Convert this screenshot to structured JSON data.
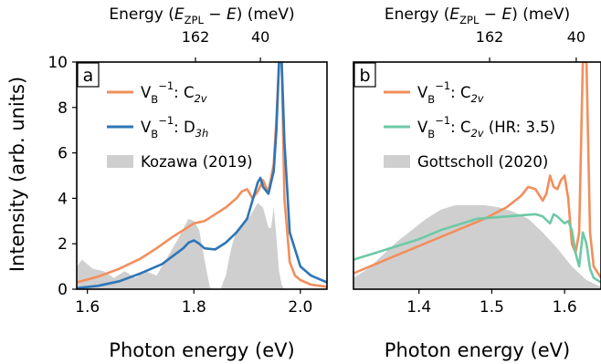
{
  "figure": {
    "y_axis_label": "Intensity (arb. units)"
  },
  "chart_data": [
    {
      "type": "line",
      "panel": "a",
      "title": "",
      "xlabel": "Photon energy (eV)",
      "ylabel": "Intensity (arb. units)",
      "top_axis_label": "Energy (E_ZPL − E) (meV)",
      "top_ticks": [
        "162",
        "40"
      ],
      "top_ticks_x": [
        1.803,
        1.925
      ],
      "xlim": [
        1.58,
        2.05
      ],
      "ylim": [
        0,
        10
      ],
      "xticks": [
        "1.6",
        "1.8",
        "2.0"
      ],
      "xtick_values": [
        1.6,
        1.8,
        2.0
      ],
      "yticks": [
        "0",
        "2",
        "4",
        "6",
        "8",
        "10"
      ],
      "ytick_values": [
        0,
        2,
        4,
        6,
        8,
        10
      ],
      "legend_position": "upper-left",
      "series": [
        {
          "name": "V_B^−1: C_2v",
          "label_main": "V",
          "label_sub1": "B",
          "label_sup": "−1",
          "label_tail": ": C",
          "label_sub2": "2v",
          "kind": "line",
          "color": "#f28e5c",
          "x": [
            1.58,
            1.62,
            1.66,
            1.7,
            1.73,
            1.76,
            1.78,
            1.8,
            1.82,
            1.84,
            1.86,
            1.88,
            1.89,
            1.9,
            1.91,
            1.92,
            1.93,
            1.935,
            1.94,
            1.945,
            1.95,
            1.955,
            1.96,
            1.965,
            1.97,
            1.98,
            1.99,
            2.0,
            2.02,
            2.05
          ],
          "y": [
            0.3,
            0.55,
            0.9,
            1.35,
            1.8,
            2.3,
            2.6,
            2.9,
            3.0,
            3.3,
            3.6,
            4.0,
            4.3,
            4.4,
            4.0,
            4.3,
            4.8,
            4.5,
            4.3,
            4.9,
            5.5,
            7.5,
            10.0,
            10.0,
            4.0,
            1.2,
            0.6,
            0.4,
            0.2,
            0.1
          ]
        },
        {
          "name": "V_B^−1: D_3h",
          "label_main": "V",
          "label_sub1": "B",
          "label_sup": "−1",
          "label_tail": ": D",
          "label_sub2": "3h",
          "kind": "line",
          "color": "#2e75b6",
          "x": [
            1.58,
            1.62,
            1.66,
            1.7,
            1.74,
            1.76,
            1.78,
            1.79,
            1.8,
            1.81,
            1.82,
            1.84,
            1.86,
            1.88,
            1.9,
            1.92,
            1.925,
            1.93,
            1.94,
            1.95,
            1.955,
            1.96,
            1.965,
            1.97,
            1.98,
            2.0,
            2.02,
            2.05
          ],
          "y": [
            0.05,
            0.15,
            0.35,
            0.7,
            1.1,
            1.45,
            1.8,
            2.05,
            2.15,
            2.0,
            1.8,
            1.75,
            2.05,
            2.5,
            3.1,
            4.7,
            4.9,
            4.5,
            4.2,
            5.2,
            7.0,
            10.0,
            10.0,
            6.5,
            2.5,
            1.0,
            0.6,
            0.3
          ]
        },
        {
          "name": "Kozawa (2019)",
          "label_main": "Kozawa (2019)",
          "kind": "area",
          "color": "#cfcfcf",
          "x": [
            1.58,
            1.59,
            1.61,
            1.63,
            1.65,
            1.67,
            1.69,
            1.71,
            1.73,
            1.75,
            1.77,
            1.79,
            1.8,
            1.81,
            1.82,
            1.83,
            1.835,
            1.84,
            1.85,
            1.86,
            1.87,
            1.88,
            1.89,
            1.9,
            1.91,
            1.92,
            1.93,
            1.94,
            1.945,
            1.95,
            1.955,
            1.96,
            1.965,
            1.97,
            1.975,
            1.98
          ],
          "y": [
            1.0,
            1.3,
            0.9,
            0.8,
            0.5,
            0.8,
            0.5,
            0.8,
            0.6,
            1.4,
            2.2,
            3.1,
            3.0,
            2.6,
            1.3,
            0.1,
            0.0,
            0.0,
            0.0,
            0.6,
            1.8,
            2.6,
            2.8,
            3.0,
            3.4,
            3.8,
            3.6,
            2.7,
            2.7,
            3.6,
            2.3,
            0.8,
            0.2,
            0.0,
            0.0,
            0.0
          ]
        }
      ]
    },
    {
      "type": "line",
      "panel": "b",
      "title": "",
      "xlabel": "Photon energy (eV)",
      "ylabel": "",
      "top_axis_label": "Energy (E_ZPL − E) (meV)",
      "top_ticks": [
        "162",
        "40"
      ],
      "top_ticks_x": [
        1.497,
        1.616
      ],
      "xlim": [
        1.31,
        1.65
      ],
      "ylim": [
        0,
        10
      ],
      "xticks": [
        "1.4",
        "1.5",
        "1.6"
      ],
      "xtick_values": [
        1.4,
        1.5,
        1.6
      ],
      "yticks": [],
      "legend_position": "upper-left",
      "series": [
        {
          "name": "V_B^−1: C_2v",
          "label_main": "V",
          "label_sub1": "B",
          "label_sup": "−1",
          "label_tail": ": C",
          "label_sub2": "2v",
          "kind": "line",
          "color": "#f28e5c",
          "x": [
            1.31,
            1.34,
            1.37,
            1.4,
            1.43,
            1.46,
            1.49,
            1.52,
            1.54,
            1.55,
            1.56,
            1.57,
            1.575,
            1.58,
            1.585,
            1.59,
            1.595,
            1.6,
            1.605,
            1.61,
            1.615,
            1.62,
            1.625,
            1.63,
            1.635,
            1.64,
            1.65
          ],
          "y": [
            0.7,
            1.1,
            1.5,
            1.9,
            2.3,
            2.7,
            3.1,
            3.6,
            4.1,
            4.5,
            4.4,
            3.9,
            4.2,
            5.0,
            4.5,
            4.4,
            4.8,
            5.0,
            4.0,
            2.0,
            1.6,
            2.5,
            10.0,
            10.0,
            2.5,
            1.0,
            0.5
          ]
        },
        {
          "name": "V_B^−1: C_2v (HR: 3.5)",
          "label_main": "V",
          "label_sub1": "B",
          "label_sup": "−1",
          "label_tail": ": C",
          "label_sub2": "2v",
          "label_extra": " (HR: 3.5)",
          "kind": "line",
          "color": "#6ec9a6",
          "x": [
            1.31,
            1.34,
            1.37,
            1.4,
            1.43,
            1.46,
            1.48,
            1.5,
            1.52,
            1.54,
            1.56,
            1.57,
            1.58,
            1.585,
            1.59,
            1.6,
            1.605,
            1.61,
            1.615,
            1.62,
            1.625,
            1.63,
            1.635,
            1.64,
            1.65
          ],
          "y": [
            1.3,
            1.6,
            1.9,
            2.2,
            2.6,
            2.9,
            3.1,
            3.15,
            3.2,
            3.25,
            3.3,
            3.2,
            2.9,
            3.3,
            3.2,
            2.9,
            3.0,
            2.6,
            1.6,
            1.0,
            2.5,
            2.0,
            0.9,
            0.5,
            0.3
          ]
        },
        {
          "name": "Gottscholl (2020)",
          "label_main": "Gottscholl (2020)",
          "kind": "area",
          "color": "#cfcfcf",
          "x": [
            1.31,
            1.33,
            1.35,
            1.37,
            1.39,
            1.41,
            1.43,
            1.45,
            1.47,
            1.49,
            1.51,
            1.53,
            1.55,
            1.57,
            1.59,
            1.61,
            1.63,
            1.65
          ],
          "y": [
            0.5,
            0.9,
            1.5,
            2.1,
            2.6,
            3.1,
            3.5,
            3.7,
            3.7,
            3.7,
            3.6,
            3.4,
            3.1,
            2.5,
            1.8,
            1.0,
            0.4,
            0.1
          ]
        }
      ]
    }
  ]
}
